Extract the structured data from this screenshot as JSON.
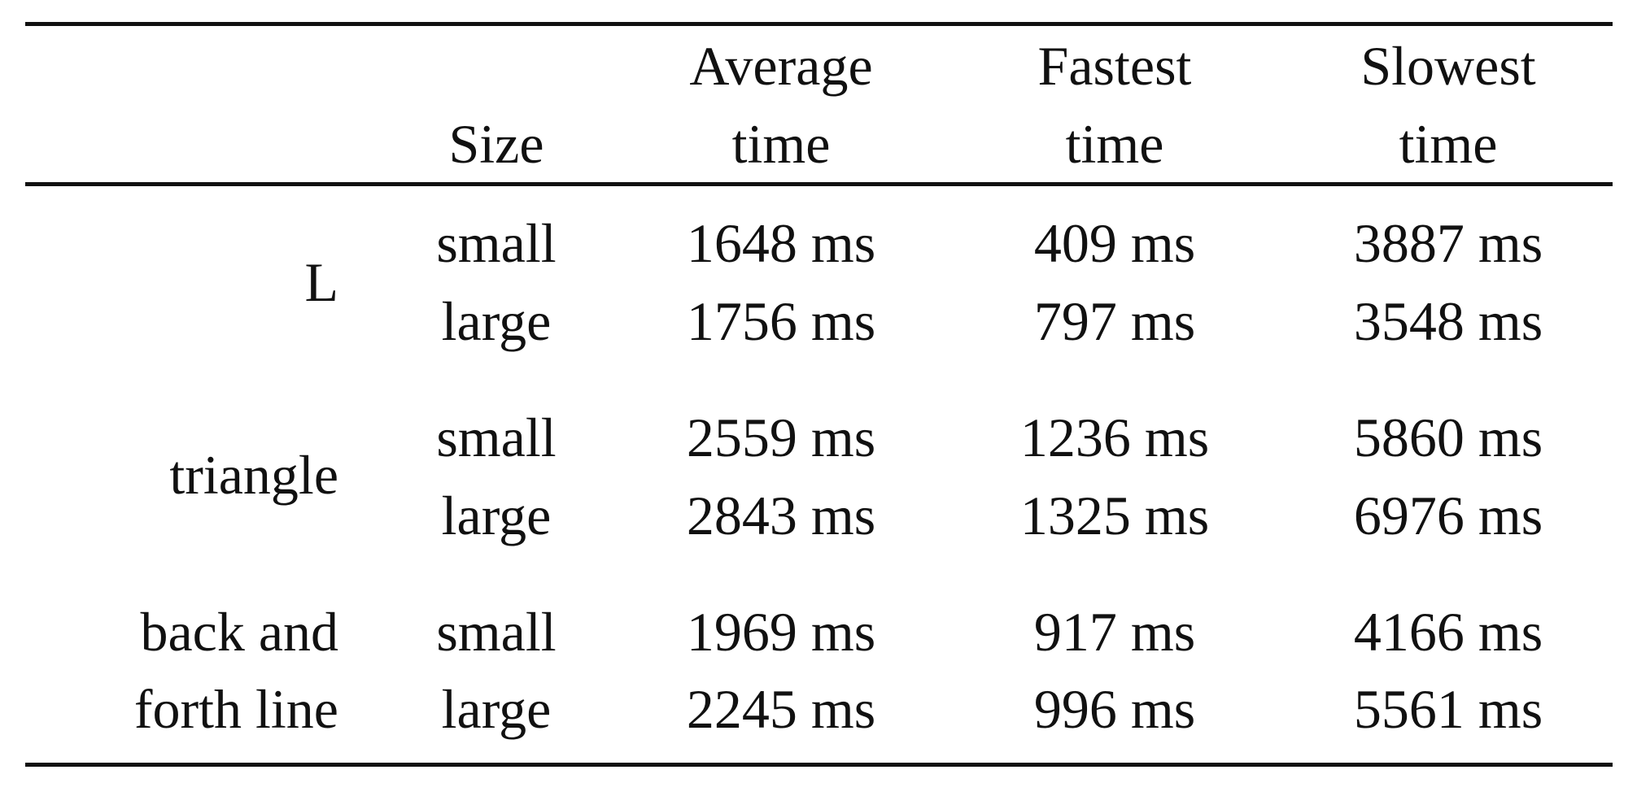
{
  "table": {
    "headers": {
      "size": "Size",
      "average_line1": "Average",
      "average_line2": "time",
      "fastest_line1": "Fastest",
      "fastest_line2": "time",
      "slowest_line1": "Slowest",
      "slowest_line2": "time"
    },
    "groups": [
      {
        "shape_line1": "L",
        "shape_line2": "",
        "rows": [
          {
            "size": "small",
            "average": "1648 ms",
            "fastest": "409 ms",
            "slowest": "3887 ms"
          },
          {
            "size": "large",
            "average": "1756 ms",
            "fastest": "797 ms",
            "slowest": "3548 ms"
          }
        ]
      },
      {
        "shape_line1": "triangle",
        "shape_line2": "",
        "rows": [
          {
            "size": "small",
            "average": "2559 ms",
            "fastest": "1236 ms",
            "slowest": "5860 ms"
          },
          {
            "size": "large",
            "average": "2843 ms",
            "fastest": "1325 ms",
            "slowest": "6976 ms"
          }
        ]
      },
      {
        "shape_line1": "back and",
        "shape_line2": "forth line",
        "rows": [
          {
            "size": "small",
            "average": "1969 ms",
            "fastest": "917 ms",
            "slowest": "4166 ms"
          },
          {
            "size": "large",
            "average": "2245 ms",
            "fastest": "996 ms",
            "slowest": "5561 ms"
          }
        ]
      }
    ]
  }
}
